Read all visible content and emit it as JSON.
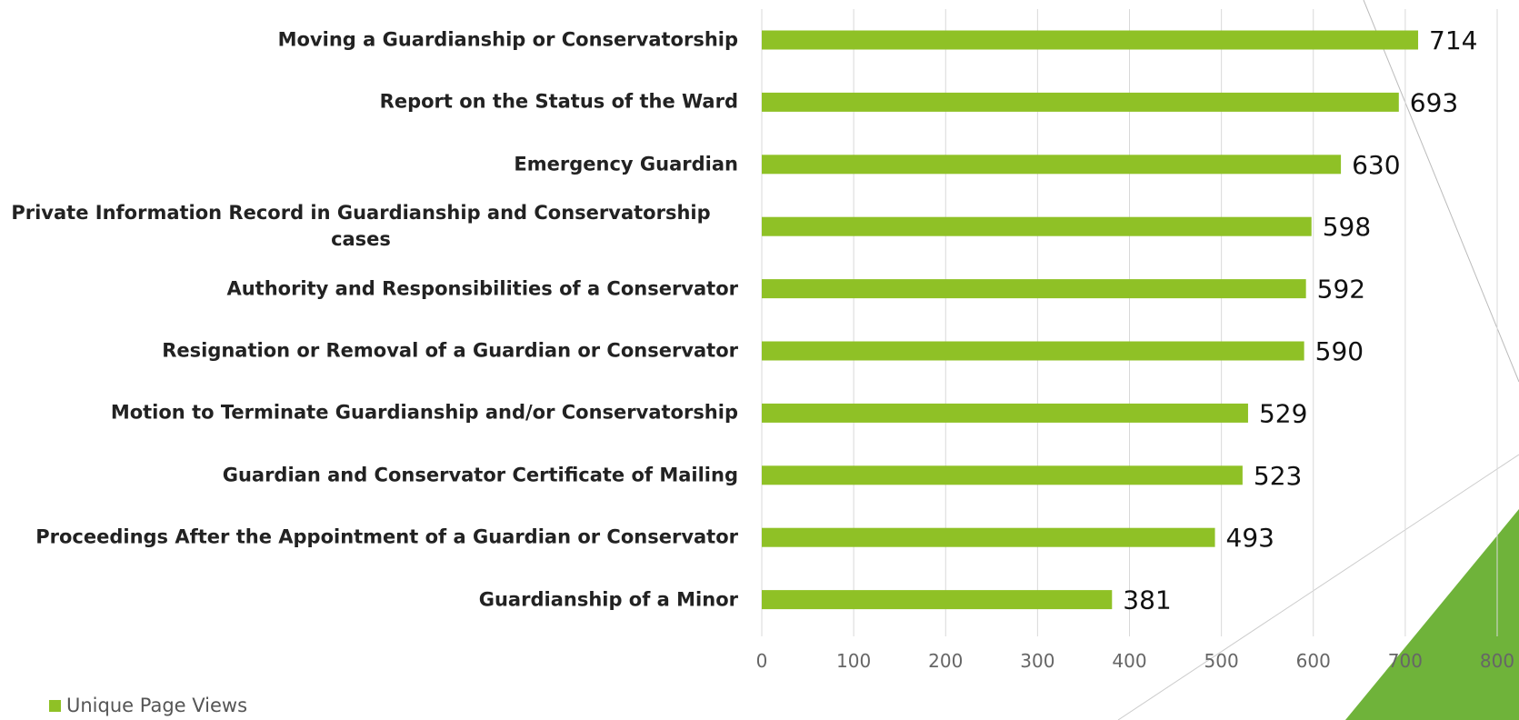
{
  "chart_data": {
    "type": "bar",
    "orientation": "horizontal",
    "categories": [
      "Moving a Guardianship or Conservatorship",
      "Report on the Status of the Ward",
      "Emergency Guardian",
      "Private Information Record in Guardianship and Conservatorship cases",
      "Authority and Responsibilities of a Conservator",
      "Resignation or Removal of a Guardian or Conservator",
      "Motion to Terminate Guardianship and/or Conservatorship",
      "Guardian and Conservator Certificate of Mailing",
      "Proceedings After the Appointment of a Guardian or Conservator",
      "Guardianship of a Minor"
    ],
    "series": [
      {
        "name": "Unique Page Views",
        "color": "#8fc126",
        "values": [
          714,
          693,
          630,
          598,
          592,
          590,
          529,
          523,
          493,
          381
        ]
      }
    ],
    "xlim": [
      0,
      800
    ],
    "xticks": [
      0,
      100,
      200,
      300,
      400,
      500,
      600,
      700,
      800
    ],
    "grid": true,
    "legend": "bottom-left"
  }
}
